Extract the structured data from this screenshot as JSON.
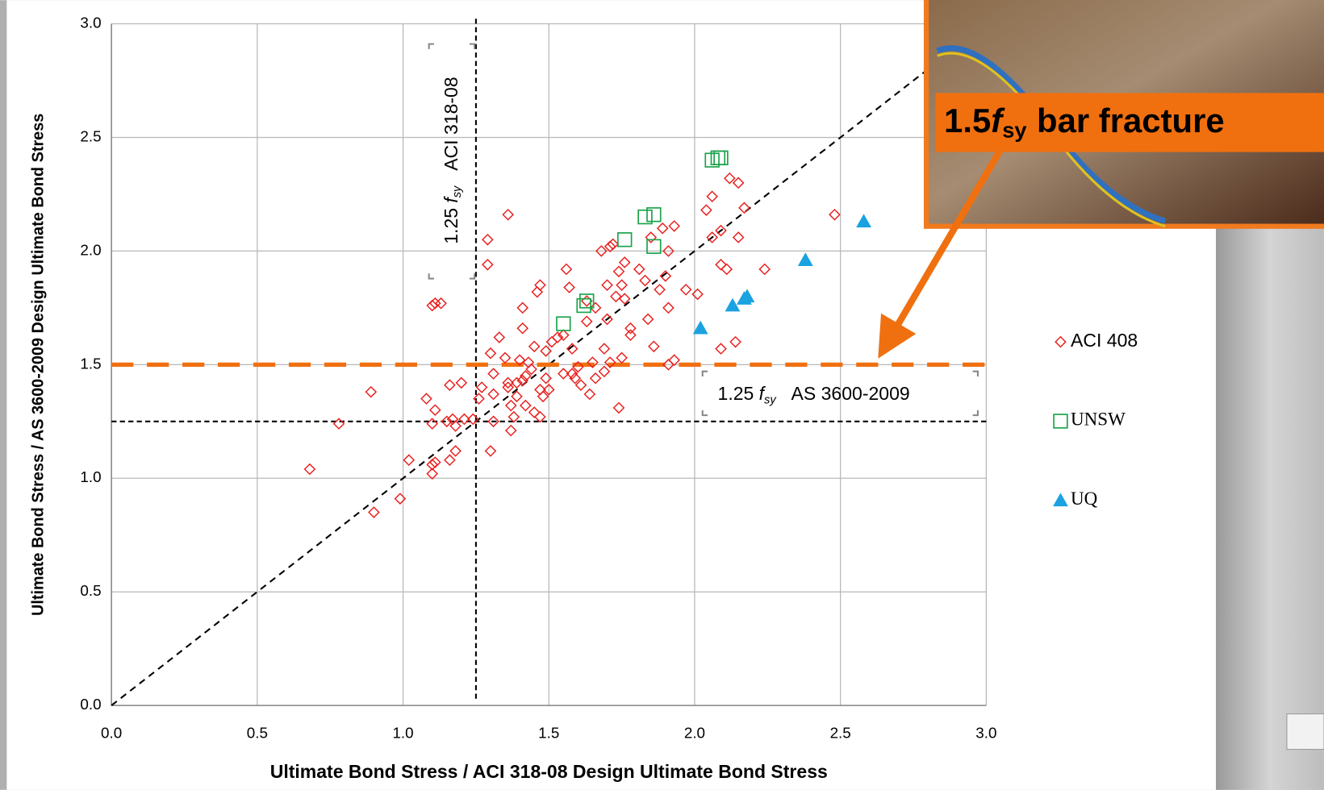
{
  "chart_data": {
    "type": "scatter",
    "x_label": "Ultimate Bond Stress / ACI 318-08 Design Ultimate Bond Stress",
    "y_label": "Ultimate Bond Stress / AS 3600-2009 Design Ultimate Bond Stress",
    "xlim": [
      0,
      3
    ],
    "ylim": [
      0,
      3
    ],
    "xticks": [
      {
        "value": 0,
        "label": "0.0"
      },
      0.5,
      {
        "value": 1,
        "label": "1.0"
      },
      1.5,
      {
        "value": 2,
        "label": "2.0"
      },
      2.5,
      {
        "value": 3,
        "label": "3.0"
      }
    ],
    "yticks": [
      {
        "value": 0,
        "label": "0.0"
      },
      0.5,
      {
        "value": 1,
        "label": "1.0"
      },
      1.5,
      {
        "value": 2,
        "label": "2.0"
      },
      2.5,
      {
        "value": 3,
        "label": "3.0"
      }
    ],
    "grid": true,
    "identity_line": true,
    "legend_position": "right",
    "reference_lines": [
      {
        "axis": "x",
        "value": 1.25,
        "color": "#000000"
      },
      {
        "axis": "y",
        "value": 1.25,
        "color": "#000000"
      },
      {
        "axis": "y",
        "value": 1.5,
        "color": "#f07010"
      }
    ],
    "annotations": {
      "aci": {
        "number": "1.25",
        "symbol": "f",
        "subscript": "sy",
        "code": "ACI 318-08"
      },
      "as": {
        "number": "1.25",
        "symbol": "f",
        "subscript": "sy",
        "code": "AS 3600-2009"
      },
      "fracture": {
        "number": "1.5",
        "symbol": "f",
        "subscript": "sy",
        "text": "bar fracture"
      }
    },
    "series": [
      {
        "name": "ACI 408",
        "color": "#e8201e",
        "marker": "diamond",
        "x": [
          0.68,
          0.78,
          0.89,
          0.9,
          0.99,
          1.02,
          1.08,
          1.1,
          1.1,
          1.11,
          1.1,
          1.11,
          1.1,
          1.11,
          1.13,
          1.15,
          1.16,
          1.18,
          1.17,
          1.18,
          1.16,
          1.2,
          1.21,
          1.24,
          1.26,
          1.27,
          1.29,
          1.29,
          1.3,
          1.3,
          1.31,
          1.31,
          1.31,
          1.33,
          1.35,
          1.36,
          1.36,
          1.36,
          1.37,
          1.37,
          1.38,
          1.39,
          1.39,
          1.4,
          1.41,
          1.41,
          1.41,
          1.42,
          1.42,
          1.43,
          1.44,
          1.45,
          1.45,
          1.46,
          1.47,
          1.47,
          1.47,
          1.48,
          1.49,
          1.49,
          1.5,
          1.51,
          1.53,
          1.55,
          1.56,
          1.55,
          1.57,
          1.58,
          1.58,
          1.59,
          1.6,
          1.61,
          1.63,
          1.63,
          1.64,
          1.65,
          1.66,
          1.66,
          1.68,
          1.69,
          1.69,
          1.7,
          1.7,
          1.71,
          1.71,
          1.72,
          1.73,
          1.74,
          1.74,
          1.75,
          1.75,
          1.76,
          1.76,
          1.78,
          1.78,
          1.81,
          1.83,
          1.84,
          1.85,
          1.86,
          1.88,
          1.89,
          1.9,
          1.91,
          1.91,
          1.91,
          1.93,
          1.93,
          1.97,
          2.01,
          2.04,
          2.06,
          2.06,
          2.09,
          2.09,
          2.11,
          2.09,
          2.12,
          2.15,
          2.14,
          2.15,
          2.17,
          2.24,
          2.48
        ],
        "values": [
          1.04,
          1.24,
          1.38,
          0.85,
          0.91,
          1.08,
          1.35,
          1.06,
          1.02,
          1.07,
          1.24,
          1.3,
          1.76,
          1.77,
          1.77,
          1.25,
          1.08,
          1.12,
          1.26,
          1.23,
          1.41,
          1.42,
          1.26,
          1.26,
          1.35,
          1.4,
          2.05,
          1.94,
          1.12,
          1.55,
          1.25,
          1.37,
          1.46,
          1.62,
          1.53,
          2.16,
          1.42,
          1.4,
          1.32,
          1.21,
          1.27,
          1.42,
          1.36,
          1.52,
          1.43,
          1.75,
          1.66,
          1.32,
          1.45,
          1.51,
          1.48,
          1.29,
          1.58,
          1.82,
          1.85,
          1.39,
          1.27,
          1.36,
          1.56,
          1.44,
          1.39,
          1.6,
          1.62,
          1.63,
          1.92,
          1.46,
          1.84,
          1.46,
          1.57,
          1.44,
          1.49,
          1.41,
          1.78,
          1.69,
          1.37,
          1.51,
          1.44,
          1.75,
          2.0,
          1.47,
          1.57,
          1.85,
          1.7,
          2.02,
          1.51,
          2.03,
          1.8,
          1.91,
          1.31,
          1.53,
          1.85,
          1.95,
          1.79,
          1.63,
          1.66,
          1.92,
          1.87,
          1.7,
          2.06,
          1.58,
          1.83,
          2.1,
          1.89,
          1.5,
          1.75,
          2.0,
          2.11,
          1.52,
          1.83,
          1.81,
          2.18,
          2.24,
          2.06,
          2.09,
          1.94,
          1.92,
          1.57,
          2.32,
          2.3,
          1.6,
          2.06,
          2.19,
          1.92,
          2.16
        ]
      },
      {
        "name": "UNSW",
        "color": "#1aa34a",
        "marker": "square",
        "x": [
          1.55,
          1.62,
          1.63,
          1.76,
          1.83,
          1.86,
          1.86,
          2.06,
          2.08,
          2.09
        ],
        "values": [
          1.68,
          1.76,
          1.78,
          2.05,
          2.15,
          2.16,
          2.02,
          2.4,
          2.41,
          2.41
        ]
      },
      {
        "name": "UQ",
        "color": "#1aa3e0",
        "marker": "triangle",
        "x": [
          2.02,
          2.13,
          2.17,
          2.18,
          2.38,
          2.58
        ],
        "values": [
          1.66,
          1.76,
          1.79,
          1.8,
          1.96,
          2.13
        ]
      }
    ]
  }
}
